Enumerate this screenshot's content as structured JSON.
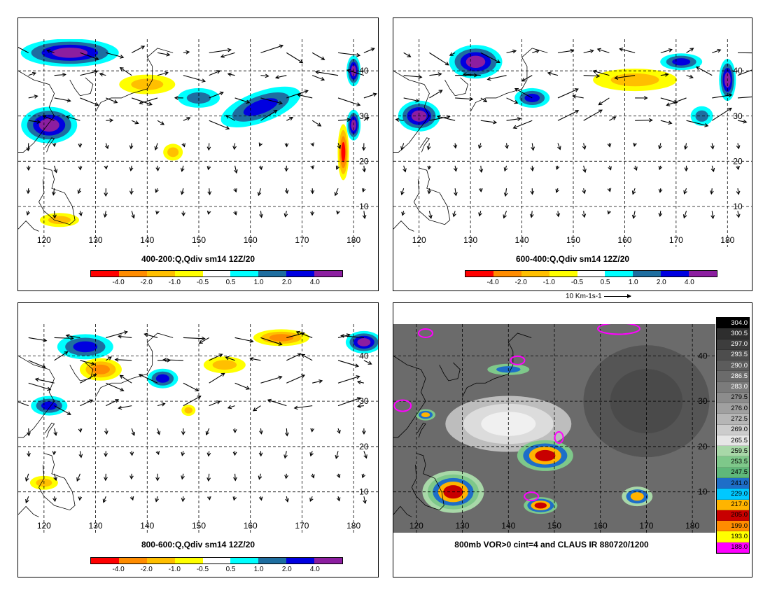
{
  "panels": {
    "p1": {
      "caption": "400-200:Q,Qdiv sm14 12Z/20"
    },
    "p2": {
      "caption": "600-400:Q,Qdiv sm14 12Z/20"
    },
    "p3": {
      "caption": "800-600:Q,Qdiv sm14 12Z/20"
    },
    "p4": {
      "caption": "800mb VOR>0 cint=4 and CLAUS IR 880720/1200"
    }
  },
  "lon_labels": [
    "120",
    "130",
    "140",
    "150",
    "160",
    "170",
    "180"
  ],
  "lat_labels": [
    "10",
    "20",
    "30",
    "40"
  ],
  "div_colorbar": {
    "colors": [
      "#ff0000",
      "#ff8c00",
      "#ffbf00",
      "#ffff00",
      "#ffffff",
      "#00ffff",
      "#1e6ea0",
      "#0000e0",
      "#8c1ea0"
    ],
    "labels": [
      "-4.0",
      "-2.0",
      "-1.0",
      "-0.5",
      "0.5",
      "1.0",
      "2.0",
      "4.0"
    ]
  },
  "reference_vector": "10 Km-1s-1",
  "ir_colorbar": {
    "labels": [
      "304.0",
      "300.5",
      "297.0",
      "293.5",
      "290.0",
      "286.5",
      "283.0",
      "279.5",
      "276.0",
      "272.5",
      "269.0",
      "265.5",
      "259.5",
      "253.5",
      "247.5",
      "241.0",
      "229.0",
      "217.0",
      "205.0",
      "199.0",
      "193.0",
      "188.0"
    ],
    "colors": [
      "#000000",
      "#2e2e2e",
      "#3d3d3d",
      "#4d4d4d",
      "#5c5c5c",
      "#6b6b6b",
      "#7b7b7b",
      "#8c8c8c",
      "#a0a0a0",
      "#b6b6b6",
      "#cccccc",
      "#e6e6e6",
      "#a8d8a8",
      "#7ec88a",
      "#5fb87a",
      "#1e6ec8",
      "#00c8ff",
      "#ffb400",
      "#c80000",
      "#ff8c00",
      "#ffff00",
      "#ff00ff"
    ]
  }
}
